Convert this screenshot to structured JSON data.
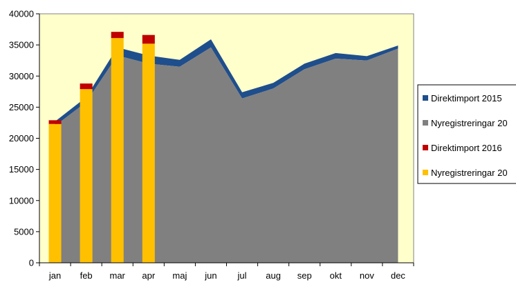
{
  "chart_data": {
    "type": "bar",
    "categories": [
      "jan",
      "feb",
      "mar",
      "apr",
      "maj",
      "jun",
      "jul",
      "aug",
      "sep",
      "okt",
      "nov",
      "dec"
    ],
    "ylim": [
      0,
      40000
    ],
    "yticks": [
      0,
      5000,
      10000,
      15000,
      20000,
      25000,
      30000,
      35000,
      40000
    ],
    "grid": false,
    "legend_position": "right",
    "series": [
      {
        "name": "Direktimport 2015",
        "kind": "stacked-area",
        "color": "#1F4E8C",
        "values": [
          700,
          800,
          1300,
          1300,
          1100,
          1300,
          1000,
          900,
          900,
          900,
          700,
          500
        ]
      },
      {
        "name": "Nyregistreringar 20",
        "kind": "stacked-area",
        "color": "#808080",
        "values": [
          22000,
          25800,
          33300,
          32000,
          31500,
          34600,
          26400,
          28000,
          31100,
          32800,
          32500,
          34400
        ]
      },
      {
        "name": "Direktimport 2016",
        "kind": "stacked-bar",
        "color": "#C00000",
        "values": [
          600,
          900,
          1000,
          1400,
          null,
          null,
          null,
          null,
          null,
          null,
          null,
          null
        ]
      },
      {
        "name": "Nyregistreringar 20",
        "kind": "stacked-bar",
        "color": "#FFC000",
        "values": [
          22300,
          27900,
          36100,
          35200,
          null,
          null,
          null,
          null,
          null,
          null,
          null,
          null
        ]
      }
    ],
    "colors": {
      "plot_background": "#FFFFCC",
      "page_background": "#FFFFFF",
      "axis": "#000000"
    }
  }
}
